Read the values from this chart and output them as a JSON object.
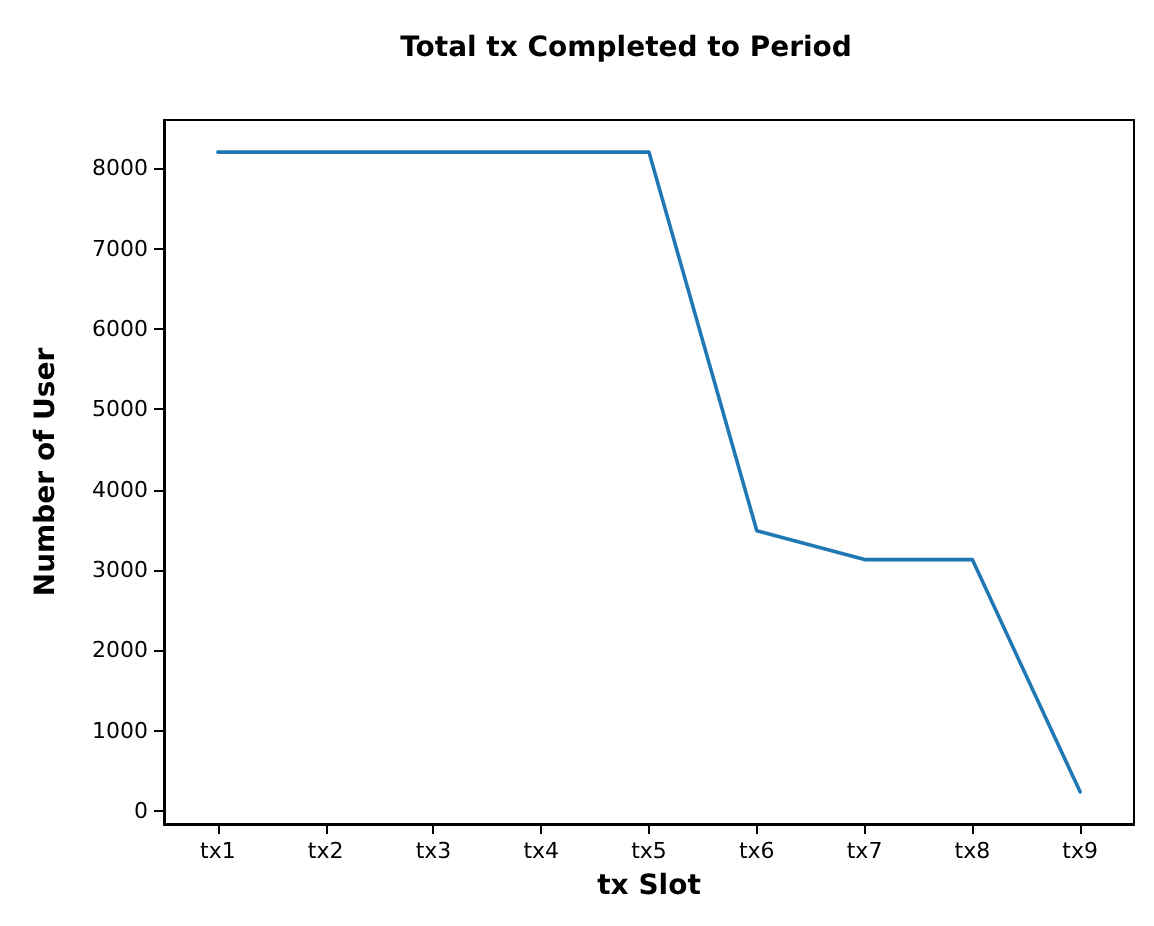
{
  "chart_data": {
    "type": "line",
    "title": "Total tx Completed to Period",
    "xlabel": "tx Slot",
    "ylabel": "Number of User",
    "categories": [
      "tx1",
      "tx2",
      "tx3",
      "tx4",
      "tx5",
      "tx6",
      "tx7",
      "tx8",
      "tx9"
    ],
    "series": [
      {
        "color": "#1f77b4",
        "values": [
          8200,
          8200,
          8200,
          8200,
          8200,
          3490,
          3130,
          3130,
          240
        ]
      }
    ],
    "ylim": [
      -160,
      8600
    ],
    "yticks": [
      0,
      1000,
      2000,
      3000,
      4000,
      5000,
      6000,
      7000,
      8000
    ],
    "marker": "none",
    "line_style": "solid"
  }
}
